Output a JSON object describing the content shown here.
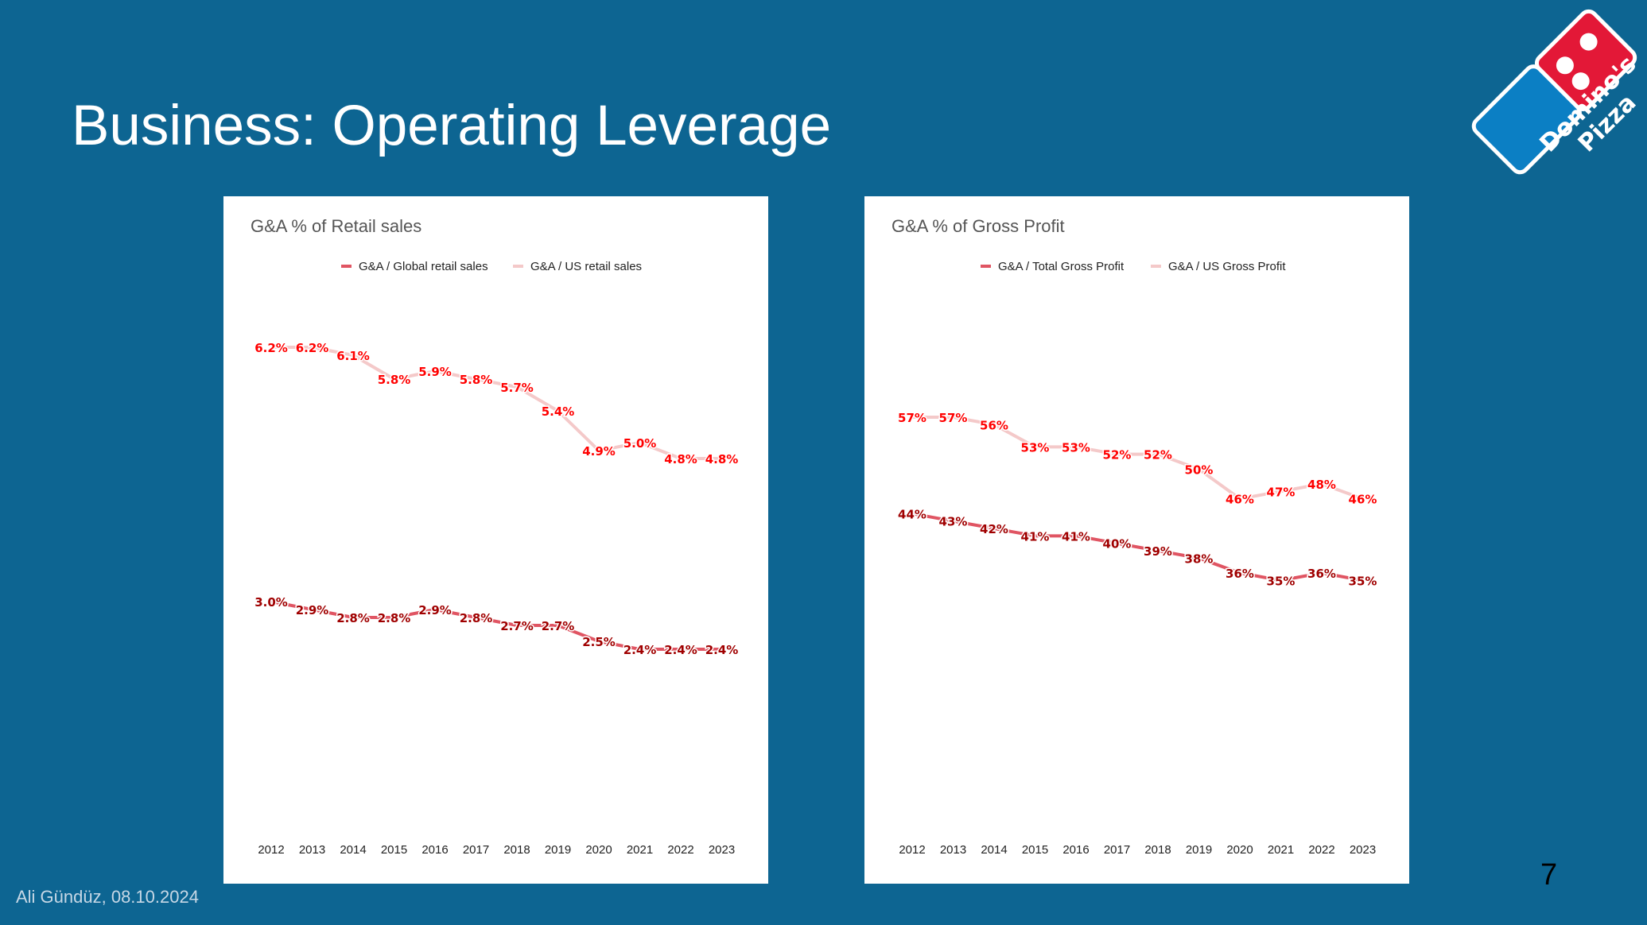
{
  "slide": {
    "title": "Business: Operating Leverage",
    "footer": "Ali Gündüz, 08.10.2024",
    "page_number": "7",
    "logo": {
      "line1": "Domino's",
      "line2": "Pizza",
      "icon": "dominos-logo-icon"
    }
  },
  "colors": {
    "background": "#0d6592",
    "series_dark": "#e05563",
    "series_light": "#f4c9c9",
    "label_dark": "#a00000",
    "label_red": "#ff0000",
    "title_text": "#555555"
  },
  "chart_data": [
    {
      "type": "line",
      "title": "G&A % of Retail sales",
      "x": [
        "2012",
        "2013",
        "2014",
        "2015",
        "2016",
        "2017",
        "2018",
        "2019",
        "2020",
        "2021",
        "2022",
        "2023"
      ],
      "ylim": [
        0,
        7
      ],
      "grid": false,
      "legend_position": "top",
      "series": [
        {
          "name": "G&A / Global retail sales",
          "style": "dark",
          "values": [
            3.0,
            2.9,
            2.8,
            2.8,
            2.9,
            2.8,
            2.7,
            2.7,
            2.5,
            2.4,
            2.4,
            2.4
          ],
          "labels": [
            "3.0%",
            "2.9%",
            "2.8%",
            "2.8%",
            "2.9%",
            "2.8%",
            "2.7%",
            "2.7%",
            "2.5%",
            "2.4%",
            "2.4%",
            "2.4%"
          ]
        },
        {
          "name": "G&A / US retail sales",
          "style": "light",
          "values": [
            6.2,
            6.2,
            6.1,
            5.8,
            5.9,
            5.8,
            5.7,
            5.4,
            4.9,
            5.0,
            4.8,
            4.8
          ],
          "labels": [
            "6.2%",
            "6.2%",
            "6.1%",
            "5.8%",
            "5.9%",
            "5.8%",
            "5.7%",
            "5.4%",
            "4.9%",
            "5.0%",
            "4.8%",
            "4.8%"
          ]
        }
      ]
    },
    {
      "type": "line",
      "title": "G&A % of Gross Profit",
      "x": [
        "2012",
        "2013",
        "2014",
        "2015",
        "2016",
        "2017",
        "2018",
        "2019",
        "2020",
        "2021",
        "2022",
        "2023"
      ],
      "ylim": [
        0,
        75
      ],
      "grid": false,
      "legend_position": "top",
      "series": [
        {
          "name": "G&A / Total Gross Profit",
          "style": "dark",
          "values": [
            44,
            43,
            42,
            41,
            41,
            40,
            39,
            38,
            36,
            35,
            36,
            35
          ],
          "labels": [
            "44%",
            "43%",
            "42%",
            "41%",
            "41%",
            "40%",
            "39%",
            "38%",
            "36%",
            "35%",
            "36%",
            "35%"
          ]
        },
        {
          "name": "G&A / US Gross Profit",
          "style": "light",
          "values": [
            57,
            57,
            56,
            53,
            53,
            52,
            52,
            50,
            46,
            47,
            48,
            46
          ],
          "labels": [
            "57%",
            "57%",
            "56%",
            "53%",
            "53%",
            "52%",
            "52%",
            "50%",
            "46%",
            "47%",
            "48%",
            "46%"
          ]
        }
      ]
    }
  ]
}
